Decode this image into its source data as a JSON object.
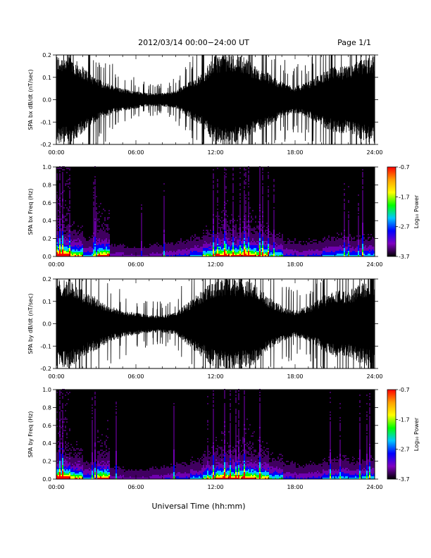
{
  "header": {
    "title": "2012/03/14   00:00−24:00 UT",
    "page": "Page 1/1"
  },
  "x_axis": {
    "label": "Universal Time (hh:mm)",
    "ticks": [
      "00:00",
      "06:00",
      "12:00",
      "18:00",
      "24:00"
    ]
  },
  "colorbar": {
    "label": "Log₁₀ Power",
    "ticks": [
      "-0.7",
      "-1.7",
      "-2.7",
      "-3.7"
    ],
    "colors": [
      "#ff0000",
      "#ffa000",
      "#ffff00",
      "#00ff00",
      "#00c8ff",
      "#0000ff",
      "#8000c0",
      "#000000"
    ]
  },
  "chart_data": [
    {
      "type": "line",
      "ylabel": "SPA bx dB/dt (nT/sec)",
      "xlim": [
        0,
        24
      ],
      "ylim": [
        -0.2,
        0.2
      ],
      "yticks": [
        "-0.2",
        "-0.1",
        "0.0",
        "0.1",
        "0.2"
      ],
      "series_color": "#000000",
      "envelope_hours": [
        0,
        1,
        2,
        3,
        4,
        5,
        6,
        7,
        8,
        9,
        10,
        11,
        12,
        13,
        14,
        15,
        16,
        17,
        18,
        19,
        20,
        21,
        22,
        23,
        24
      ],
      "envelope_amplitude": [
        0.2,
        0.2,
        0.15,
        0.1,
        0.07,
        0.05,
        0.04,
        0.03,
        0.03,
        0.04,
        0.08,
        0.12,
        0.2,
        0.2,
        0.2,
        0.15,
        0.12,
        0.08,
        0.06,
        0.08,
        0.12,
        0.15,
        0.15,
        0.18,
        0.2
      ]
    },
    {
      "type": "heatmap",
      "ylabel": "SPA bx Freq (Hz)",
      "xlim": [
        0,
        24
      ],
      "ylim": [
        0.0,
        1.0
      ],
      "yticks": [
        "0.0",
        "0.2",
        "0.4",
        "0.6",
        "0.8",
        "1.0"
      ],
      "zlim": [
        -3.7,
        -0.7
      ]
    },
    {
      "type": "line",
      "ylabel": "SPA by dB/dt (nT/sec)",
      "xlim": [
        0,
        24
      ],
      "ylim": [
        -0.2,
        0.2
      ],
      "yticks": [
        "-0.2",
        "-0.1",
        "0.0",
        "0.1",
        "0.2"
      ],
      "series_color": "#000000",
      "envelope_hours": [
        0,
        1,
        2,
        3,
        4,
        5,
        6,
        7,
        8,
        9,
        10,
        11,
        12,
        13,
        14,
        15,
        16,
        17,
        18,
        19,
        20,
        21,
        22,
        23,
        24
      ],
      "envelope_amplitude": [
        0.2,
        0.2,
        0.15,
        0.12,
        0.08,
        0.06,
        0.05,
        0.04,
        0.04,
        0.05,
        0.1,
        0.15,
        0.2,
        0.2,
        0.2,
        0.18,
        0.12,
        0.08,
        0.06,
        0.08,
        0.12,
        0.15,
        0.15,
        0.18,
        0.2
      ]
    },
    {
      "type": "heatmap",
      "ylabel": "SPA by Freq (Hz)",
      "xlim": [
        0,
        24
      ],
      "ylim": [
        0.0,
        1.0
      ],
      "yticks": [
        "0.0",
        "0.2",
        "0.4",
        "0.6",
        "0.8",
        "1.0"
      ],
      "zlim": [
        -3.7,
        -0.7
      ]
    }
  ]
}
